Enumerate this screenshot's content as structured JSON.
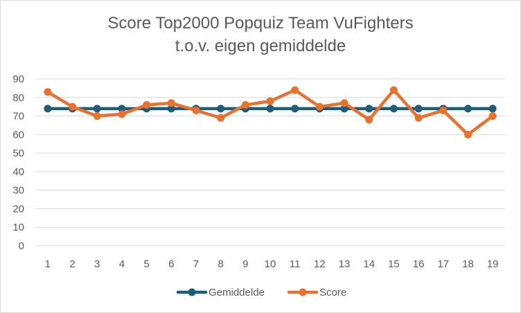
{
  "chart_data": {
    "type": "line",
    "title": [
      "Score Top2000 Popquiz Team VuFighters",
      "t.o.v. eigen gemiddelde"
    ],
    "xlabel": "",
    "ylabel": "",
    "categories": [
      "1",
      "2",
      "3",
      "4",
      "5",
      "6",
      "7",
      "8",
      "9",
      "10",
      "11",
      "12",
      "13",
      "14",
      "15",
      "16",
      "17",
      "18",
      "19"
    ],
    "ylim": [
      0,
      90
    ],
    "yticks": [
      0,
      10,
      20,
      30,
      40,
      50,
      60,
      70,
      80,
      90
    ],
    "grid": true,
    "legend_position": "bottom",
    "series": [
      {
        "name": "Gemiddelde",
        "color": "#1f5c78",
        "values": [
          74,
          74,
          74,
          74,
          74,
          74,
          74,
          74,
          74,
          74,
          74,
          74,
          74,
          74,
          74,
          74,
          74,
          74,
          74
        ]
      },
      {
        "name": "Score",
        "color": "#e8712f",
        "values": [
          83,
          75,
          70,
          71,
          76,
          77,
          73,
          69,
          76,
          78,
          84,
          75,
          77,
          68,
          84,
          69,
          73,
          60,
          70
        ]
      }
    ]
  }
}
